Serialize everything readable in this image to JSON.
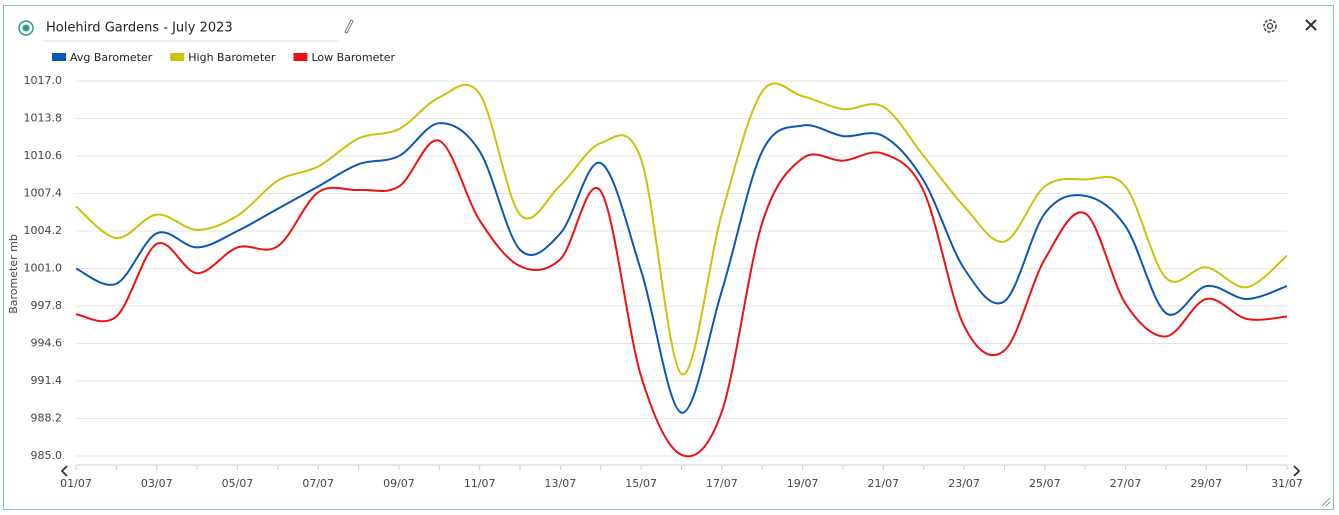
{
  "chart_data": {
    "type": "line",
    "title": "Holehird Gardens - July 2023",
    "ylabel": "Barometer mb",
    "categories": [
      "01/07",
      null,
      "03/07",
      null,
      "05/07",
      null,
      "07/07",
      null,
      "09/07",
      null,
      "11/07",
      null,
      "13/07",
      null,
      "15/07",
      null,
      "17/07",
      null,
      "19/07",
      null,
      "21/07",
      null,
      "23/07",
      null,
      "25/07",
      null,
      "27/07",
      null,
      "29/07",
      null,
      "31/07"
    ],
    "series": [
      {
        "name": "Avg Barometer",
        "color": "#0b57b5",
        "values": [
          1001.0,
          999.7,
          1004.0,
          1002.8,
          1004.2,
          1006.1,
          1008.0,
          1009.9,
          1010.6,
          1013.4,
          1011.0,
          1002.6,
          1004.0,
          1010.0,
          1000.8,
          988.7,
          999.1,
          1011.0,
          1013.2,
          1012.3,
          1012.3,
          1008.5,
          1001.0,
          998.2,
          1005.7,
          1007.2,
          1004.6,
          997.2,
          999.5,
          998.4,
          999.5
        ]
      },
      {
        "name": "High Barometer",
        "color": "#c9c40a",
        "values": [
          1006.3,
          1003.6,
          1005.6,
          1004.3,
          1005.5,
          1008.5,
          1009.7,
          1012.1,
          1012.9,
          1015.6,
          1015.9,
          1005.6,
          1008.1,
          1011.7,
          1010.3,
          992.0,
          1005.7,
          1016.1,
          1015.7,
          1014.6,
          1014.8,
          1010.6,
          1006.3,
          1003.3,
          1008.0,
          1008.6,
          1008.0,
          1000.2,
          1001.1,
          999.4,
          1002.1
        ]
      },
      {
        "name": "Low Barometer",
        "color": "#ee1111",
        "values": [
          997.1,
          996.9,
          1003.1,
          1000.6,
          1002.8,
          1002.9,
          1007.5,
          1007.7,
          1008.0,
          1011.9,
          1005.1,
          1001.2,
          1001.8,
          1007.6,
          991.8,
          985.1,
          988.8,
          1004.9,
          1010.4,
          1010.2,
          1010.8,
          1007.6,
          996.1,
          994.0,
          1001.8,
          1005.7,
          998.0,
          995.2,
          998.4,
          996.7,
          996.9
        ]
      }
    ],
    "ylim": [
      985.0,
      1017.0
    ],
    "yticks": [
      {
        "value": 985.0,
        "label": "985.0"
      },
      988.2,
      991.4,
      994.6,
      997.8,
      {
        "value": 1001.0,
        "label": "1001.0"
      },
      1004.2,
      1007.4,
      1010.6,
      1013.8,
      {
        "value": 1017.0,
        "label": "1017.0"
      }
    ],
    "grid": true,
    "legend": "top-left"
  }
}
